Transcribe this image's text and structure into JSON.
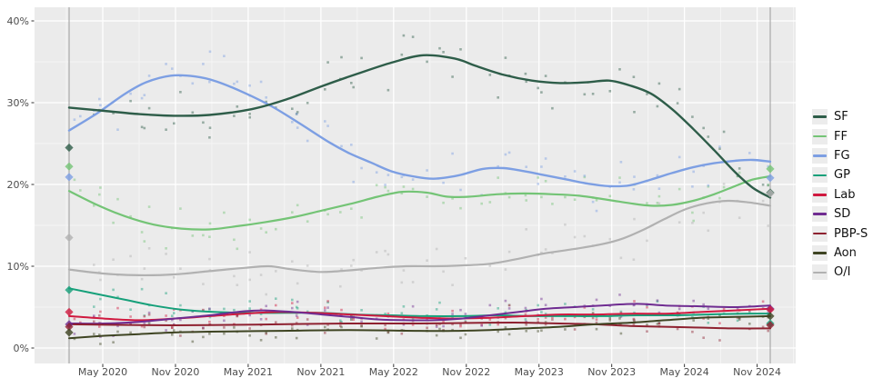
{
  "chart_data": {
    "type": "scatter",
    "title": "",
    "xlabel": "",
    "ylabel": "",
    "grid": true,
    "legend_position": "right",
    "ylim": [
      0,
      41.8
    ],
    "y_ticks": [
      {
        "v": 0,
        "label": "0%"
      },
      {
        "v": 10,
        "label": "10%"
      },
      {
        "v": 20,
        "label": "20%"
      },
      {
        "v": 30,
        "label": "30%"
      },
      {
        "v": 40,
        "label": "40%"
      }
    ],
    "y_minor": [
      5,
      15,
      25,
      35
    ],
    "x_ticks": [
      {
        "t": 0.048,
        "label": "May 2020"
      },
      {
        "t": 0.1517,
        "label": "Nov 2020"
      },
      {
        "t": 0.2554,
        "label": "May 2021"
      },
      {
        "t": 0.3591,
        "label": "Nov 2021"
      },
      {
        "t": 0.4628,
        "label": "May 2022"
      },
      {
        "t": 0.5665,
        "label": "Nov 2022"
      },
      {
        "t": 0.6702,
        "label": "May 2023"
      },
      {
        "t": 0.7739,
        "label": "Nov 2023"
      },
      {
        "t": 0.8776,
        "label": "May 2024"
      },
      {
        "t": 0.9813,
        "label": "Nov 2024"
      }
    ],
    "theme": {
      "panel_bg": "#ebebeb",
      "grid_major": "#ffffff",
      "grid_minor": "#f7f7f7",
      "axis_text": "#4d4d4d",
      "tick_mark": "#333333",
      "election_line": "#9b9b9b"
    },
    "series": [
      {
        "name": "SF",
        "color": "#2e5d49",
        "width": 2.4,
        "spread": 2.3,
        "points": [
          [
            0,
            29.4
          ],
          [
            0.05,
            29.0
          ],
          [
            0.1,
            28.6
          ],
          [
            0.15,
            28.4
          ],
          [
            0.2,
            28.5
          ],
          [
            0.26,
            29.2
          ],
          [
            0.31,
            30.4
          ],
          [
            0.36,
            32.0
          ],
          [
            0.41,
            33.5
          ],
          [
            0.46,
            34.9
          ],
          [
            0.505,
            35.8
          ],
          [
            0.55,
            35.4
          ],
          [
            0.58,
            34.5
          ],
          [
            0.62,
            33.4
          ],
          [
            0.66,
            32.7
          ],
          [
            0.7,
            32.4
          ],
          [
            0.74,
            32.5
          ],
          [
            0.77,
            32.7
          ],
          [
            0.8,
            32.1
          ],
          [
            0.83,
            31.1
          ],
          [
            0.86,
            29.2
          ],
          [
            0.89,
            26.8
          ],
          [
            0.92,
            24.2
          ],
          [
            0.95,
            21.5
          ],
          [
            0.975,
            19.6
          ],
          [
            1,
            18.4
          ]
        ]
      },
      {
        "name": "FF",
        "color": "#74c476",
        "width": 2.2,
        "spread": 1.9,
        "points": [
          [
            0,
            19.2
          ],
          [
            0.04,
            17.5
          ],
          [
            0.08,
            16.1
          ],
          [
            0.12,
            15.1
          ],
          [
            0.16,
            14.6
          ],
          [
            0.2,
            14.5
          ],
          [
            0.24,
            14.9
          ],
          [
            0.28,
            15.4
          ],
          [
            0.32,
            16.0
          ],
          [
            0.36,
            16.8
          ],
          [
            0.4,
            17.6
          ],
          [
            0.44,
            18.5
          ],
          [
            0.475,
            19.1
          ],
          [
            0.51,
            19.0
          ],
          [
            0.54,
            18.5
          ],
          [
            0.57,
            18.5
          ],
          [
            0.61,
            18.8
          ],
          [
            0.65,
            18.9
          ],
          [
            0.69,
            18.8
          ],
          [
            0.73,
            18.6
          ],
          [
            0.77,
            18.1
          ],
          [
            0.8,
            17.7
          ],
          [
            0.83,
            17.4
          ],
          [
            0.86,
            17.5
          ],
          [
            0.89,
            18.0
          ],
          [
            0.92,
            18.8
          ],
          [
            0.95,
            19.8
          ],
          [
            0.975,
            20.6
          ],
          [
            1,
            21.0
          ]
        ]
      },
      {
        "name": "FG",
        "color": "#7d9fe3",
        "width": 2.4,
        "spread": 2.5,
        "points": [
          [
            0,
            26.6
          ],
          [
            0.04,
            28.7
          ],
          [
            0.08,
            31.1
          ],
          [
            0.11,
            32.5
          ],
          [
            0.145,
            33.3
          ],
          [
            0.18,
            33.2
          ],
          [
            0.21,
            32.6
          ],
          [
            0.25,
            31.2
          ],
          [
            0.29,
            29.5
          ],
          [
            0.33,
            27.4
          ],
          [
            0.37,
            25.2
          ],
          [
            0.4,
            23.8
          ],
          [
            0.43,
            22.7
          ],
          [
            0.46,
            21.6
          ],
          [
            0.49,
            21.0
          ],
          [
            0.52,
            20.7
          ],
          [
            0.555,
            21.1
          ],
          [
            0.59,
            21.9
          ],
          [
            0.62,
            22.0
          ],
          [
            0.65,
            21.6
          ],
          [
            0.68,
            21.1
          ],
          [
            0.71,
            20.6
          ],
          [
            0.74,
            20.1
          ],
          [
            0.77,
            19.8
          ],
          [
            0.8,
            19.9
          ],
          [
            0.83,
            20.6
          ],
          [
            0.86,
            21.4
          ],
          [
            0.89,
            22.1
          ],
          [
            0.92,
            22.6
          ],
          [
            0.95,
            22.9
          ],
          [
            0.975,
            23.0
          ],
          [
            1,
            22.8
          ]
        ]
      },
      {
        "name": "GP",
        "color": "#16a07a",
        "width": 2.0,
        "spread": 1.2,
        "points": [
          [
            0,
            7.3
          ],
          [
            0.04,
            6.6
          ],
          [
            0.08,
            5.9
          ],
          [
            0.12,
            5.2
          ],
          [
            0.16,
            4.7
          ],
          [
            0.21,
            4.4
          ],
          [
            0.26,
            4.3
          ],
          [
            0.31,
            4.3
          ],
          [
            0.36,
            4.3
          ],
          [
            0.41,
            4.1
          ],
          [
            0.46,
            4.0
          ],
          [
            0.51,
            3.9
          ],
          [
            0.56,
            3.9
          ],
          [
            0.61,
            4.0
          ],
          [
            0.66,
            3.9
          ],
          [
            0.71,
            3.9
          ],
          [
            0.76,
            3.9
          ],
          [
            0.81,
            4.0
          ],
          [
            0.86,
            4.0
          ],
          [
            0.91,
            4.1
          ],
          [
            0.96,
            4.2
          ],
          [
            1,
            4.2
          ]
        ]
      },
      {
        "name": "Lab",
        "color": "#d0193f",
        "width": 2.0,
        "spread": 1.1,
        "points": [
          [
            0,
            3.9
          ],
          [
            0.05,
            3.6
          ],
          [
            0.1,
            3.4
          ],
          [
            0.15,
            3.6
          ],
          [
            0.2,
            3.9
          ],
          [
            0.25,
            4.2
          ],
          [
            0.3,
            4.4
          ],
          [
            0.35,
            4.3
          ],
          [
            0.4,
            4.1
          ],
          [
            0.45,
            3.9
          ],
          [
            0.5,
            3.7
          ],
          [
            0.55,
            3.6
          ],
          [
            0.6,
            3.7
          ],
          [
            0.65,
            3.9
          ],
          [
            0.7,
            4.1
          ],
          [
            0.75,
            4.1
          ],
          [
            0.8,
            4.2
          ],
          [
            0.85,
            4.2
          ],
          [
            0.9,
            4.4
          ],
          [
            0.95,
            4.6
          ],
          [
            1,
            4.8
          ]
        ]
      },
      {
        "name": "SD",
        "color": "#6f2c91",
        "width": 2.0,
        "spread": 1.1,
        "points": [
          [
            0,
            3.0
          ],
          [
            0.05,
            3.0
          ],
          [
            0.1,
            3.2
          ],
          [
            0.15,
            3.6
          ],
          [
            0.2,
            4.0
          ],
          [
            0.25,
            4.5
          ],
          [
            0.28,
            4.6
          ],
          [
            0.32,
            4.4
          ],
          [
            0.36,
            4.1
          ],
          [
            0.4,
            3.8
          ],
          [
            0.44,
            3.5
          ],
          [
            0.48,
            3.4
          ],
          [
            0.52,
            3.4
          ],
          [
            0.56,
            3.6
          ],
          [
            0.6,
            4.0
          ],
          [
            0.64,
            4.4
          ],
          [
            0.68,
            4.8
          ],
          [
            0.72,
            5.0
          ],
          [
            0.76,
            5.2
          ],
          [
            0.81,
            5.4
          ],
          [
            0.85,
            5.2
          ],
          [
            0.9,
            5.1
          ],
          [
            0.95,
            5.0
          ],
          [
            1,
            5.2
          ]
        ]
      },
      {
        "name": "PBP-S",
        "color": "#8e2130",
        "width": 2.0,
        "spread": 1.0,
        "points": [
          [
            0,
            2.9
          ],
          [
            0.1,
            2.8
          ],
          [
            0.2,
            2.8
          ],
          [
            0.3,
            2.9
          ],
          [
            0.4,
            3.0
          ],
          [
            0.5,
            3.0
          ],
          [
            0.6,
            3.1
          ],
          [
            0.65,
            3.1
          ],
          [
            0.7,
            3.0
          ],
          [
            0.75,
            2.9
          ],
          [
            0.8,
            2.7
          ],
          [
            0.85,
            2.6
          ],
          [
            0.9,
            2.5
          ],
          [
            0.95,
            2.4
          ],
          [
            1,
            2.4
          ]
        ]
      },
      {
        "name": "Aon",
        "color": "#3e4422",
        "width": 2.0,
        "spread": 0.9,
        "points": [
          [
            0,
            1.2
          ],
          [
            0.05,
            1.5
          ],
          [
            0.1,
            1.7
          ],
          [
            0.15,
            1.9
          ],
          [
            0.2,
            2.0
          ],
          [
            0.3,
            2.1
          ],
          [
            0.4,
            2.2
          ],
          [
            0.5,
            2.1
          ],
          [
            0.55,
            2.1
          ],
          [
            0.6,
            2.2
          ],
          [
            0.65,
            2.4
          ],
          [
            0.7,
            2.6
          ],
          [
            0.75,
            2.9
          ],
          [
            0.8,
            3.1
          ],
          [
            0.85,
            3.4
          ],
          [
            0.9,
            3.7
          ],
          [
            0.95,
            3.8
          ],
          [
            1,
            3.9
          ]
        ]
      },
      {
        "name": "O/I",
        "color": "#b1b1b1",
        "width": 2.2,
        "spread": 2.5,
        "points": [
          [
            0,
            9.6
          ],
          [
            0.05,
            9.1
          ],
          [
            0.1,
            8.9
          ],
          [
            0.15,
            9.0
          ],
          [
            0.2,
            9.4
          ],
          [
            0.25,
            9.8
          ],
          [
            0.285,
            10.0
          ],
          [
            0.32,
            9.6
          ],
          [
            0.36,
            9.3
          ],
          [
            0.4,
            9.5
          ],
          [
            0.44,
            9.8
          ],
          [
            0.48,
            10.0
          ],
          [
            0.52,
            10.0
          ],
          [
            0.56,
            10.1
          ],
          [
            0.6,
            10.3
          ],
          [
            0.64,
            10.9
          ],
          [
            0.68,
            11.6
          ],
          [
            0.72,
            12.1
          ],
          [
            0.76,
            12.7
          ],
          [
            0.79,
            13.4
          ],
          [
            0.82,
            14.5
          ],
          [
            0.85,
            15.8
          ],
          [
            0.88,
            17.0
          ],
          [
            0.91,
            17.7
          ],
          [
            0.94,
            18.0
          ],
          [
            0.97,
            17.8
          ],
          [
            1,
            17.4
          ]
        ]
      }
    ],
    "elections": [
      {
        "t": 0,
        "results": [
          [
            "SF",
            24.5
          ],
          [
            "FF",
            22.2
          ],
          [
            "FG",
            20.9
          ],
          [
            "O/I",
            13.5
          ],
          [
            "GP",
            7.1
          ],
          [
            "Lab",
            4.4
          ],
          [
            "SD",
            2.9
          ],
          [
            "PBP-S",
            2.6
          ],
          [
            "Aon",
            1.9
          ]
        ]
      },
      {
        "t": 1,
        "results": [
          [
            "FF",
            21.9
          ],
          [
            "FG",
            20.8
          ],
          [
            "SF",
            19.0
          ],
          [
            "O/I",
            18.9
          ],
          [
            "SD",
            4.8
          ],
          [
            "Lab",
            4.7
          ],
          [
            "Aon",
            3.9
          ],
          [
            "GP",
            3.0
          ],
          [
            "PBP-S",
            2.8
          ]
        ]
      }
    ]
  }
}
